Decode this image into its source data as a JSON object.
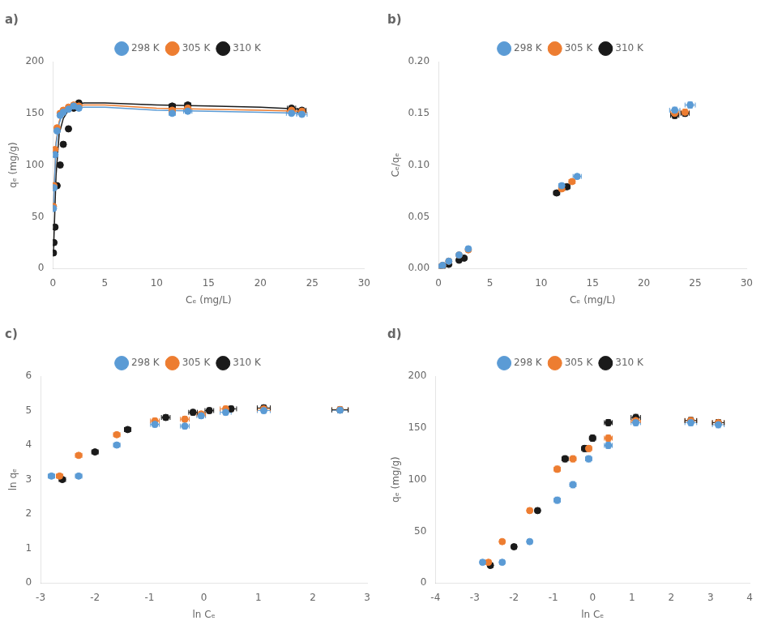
{
  "chart_data": [
    {
      "type": "scatter",
      "title": "a)",
      "x_label": "Cₑ (mg/L)",
      "y_label": "qₑ (mg/g)",
      "xlim": [
        0,
        30
      ],
      "ylim": [
        0,
        200
      ],
      "xticks": [
        0,
        5,
        10,
        15,
        20,
        25,
        30
      ],
      "yticks": [
        0,
        50,
        100,
        150,
        200
      ],
      "grid": false,
      "legend": "top",
      "marker": "circle",
      "series": [
        {
          "name": "298 K",
          "color": "#5B9BD5",
          "x": [
            0.05,
            0.1,
            0.2,
            0.4,
            0.7,
            1.0,
            1.5,
            2.0,
            2.5,
            11.5,
            13.0,
            23.0,
            24.0
          ],
          "values": [
            58,
            78,
            110,
            133,
            148,
            151,
            154,
            157,
            155,
            150,
            152,
            150,
            149
          ],
          "xerr": [
            0.0,
            0.0,
            0.0,
            0.0,
            0.0,
            0.0,
            0.0,
            0.0,
            0.0,
            0.3,
            0.4,
            0.5,
            0.5
          ],
          "yerr": [
            2,
            2,
            2,
            2,
            2,
            2,
            2,
            2,
            2,
            2,
            2,
            2,
            2
          ],
          "curve": {
            "x": [
              0.05,
              0.3,
              0.6,
              1.0,
              1.5,
              2.0,
              3.0,
              5.0,
              10.0,
              15.0,
              20.0,
              24.0
            ],
            "values": [
              58,
              120,
              140,
              151,
              154,
              155,
              156,
              156,
              153,
              152,
              151,
              150
            ]
          }
        },
        {
          "name": "305 K",
          "color": "#ED7D31",
          "x": [
            0.05,
            0.1,
            0.2,
            0.4,
            0.7,
            1.0,
            1.5,
            2.0,
            2.5,
            11.5,
            13.0,
            23.0,
            24.0
          ],
          "values": [
            60,
            80,
            115,
            136,
            150,
            153,
            156,
            158,
            157,
            153,
            155,
            153,
            152
          ],
          "xerr": [
            0.0,
            0.0,
            0.0,
            0.0,
            0.0,
            0.0,
            0.0,
            0.0,
            0.0,
            0.3,
            0.3,
            0.4,
            0.4
          ],
          "yerr": [
            2,
            2,
            2,
            2,
            2,
            2,
            2,
            2,
            2,
            2,
            2,
            2,
            2
          ],
          "curve": {
            "x": [
              0.05,
              0.3,
              0.6,
              1.0,
              1.5,
              2.0,
              3.0,
              5.0,
              10.0,
              15.0,
              20.0,
              24.0
            ],
            "values": [
              60,
              122,
              142,
              153,
              156,
              157,
              158,
              158,
              155,
              154,
              153,
              152
            ]
          }
        },
        {
          "name": "310 K",
          "color": "#1A1A1A",
          "x": [
            0.05,
            0.1,
            0.2,
            0.4,
            0.7,
            1.0,
            1.5,
            2.0,
            2.5,
            11.5,
            13.0,
            23.0,
            24.0
          ],
          "values": [
            15,
            25,
            40,
            80,
            100,
            120,
            135,
            155,
            160,
            157,
            158,
            155,
            153
          ],
          "xerr": [
            0.0,
            0.0,
            0.0,
            0.0,
            0.0,
            0.0,
            0.0,
            0.0,
            0.0,
            0.3,
            0.3,
            0.4,
            0.4
          ],
          "yerr": [
            2,
            2,
            2,
            2,
            2,
            2,
            2,
            2,
            2,
            2,
            2,
            2,
            2
          ],
          "curve": {
            "x": [
              0.05,
              0.3,
              0.6,
              1.0,
              1.5,
              2.0,
              3.0,
              5.0,
              10.0,
              15.0,
              20.0,
              24.0
            ],
            "values": [
              15,
              90,
              130,
              145,
              153,
              158,
              160,
              160,
              158,
              157,
              156,
              154
            ]
          }
        }
      ]
    },
    {
      "type": "scatter",
      "title": "b)",
      "x_label": "Cₑ (mg/L)",
      "y_label": "Cₑ/qₑ",
      "xlim": [
        0,
        30
      ],
      "ylim": [
        0,
        0.2
      ],
      "xticks": [
        0,
        5,
        10,
        15,
        20,
        25,
        30
      ],
      "yticks": [
        {
          "value": 0,
          "label": "0.00"
        },
        {
          "value": 0.05,
          "label": "0.05"
        },
        {
          "value": 0.1,
          "label": "0.10"
        },
        {
          "value": 0.15,
          "label": "0.15"
        },
        {
          "value": 0.2,
          "label": "0.20"
        }
      ],
      "grid": false,
      "legend": "top",
      "marker": "circle",
      "series": [
        {
          "name": "298 K",
          "color": "#5B9BD5",
          "x": [
            0.1,
            0.4,
            1.0,
            2.0,
            2.9,
            12.0,
            13.5,
            23.0,
            24.5
          ],
          "values": [
            0.001,
            0.003,
            0.007,
            0.013,
            0.019,
            0.08,
            0.089,
            0.153,
            0.158
          ],
          "xerr": [
            0.0,
            0.0,
            0.0,
            0.0,
            0.0,
            0.3,
            0.4,
            0.5,
            0.5
          ],
          "yerr": [
            0.0,
            0.0,
            0.0,
            0.0,
            0.0,
            0.002,
            0.002,
            0.003,
            0.003
          ]
        },
        {
          "name": "305 K",
          "color": "#ED7D31",
          "x": [
            0.1,
            0.4,
            1.0,
            2.0,
            2.9,
            12.0,
            13.0,
            23.0,
            24.0
          ],
          "values": [
            0.001,
            0.003,
            0.007,
            0.013,
            0.018,
            0.077,
            0.084,
            0.15,
            0.151
          ],
          "xerr": [
            0.0,
            0.0,
            0.0,
            0.0,
            0.0,
            0.3,
            0.3,
            0.4,
            0.4
          ],
          "yerr": [
            0.0,
            0.0,
            0.0,
            0.0,
            0.0,
            0.002,
            0.002,
            0.003,
            0.003
          ]
        },
        {
          "name": "310 K",
          "color": "#1A1A1A",
          "x": [
            0.1,
            0.4,
            1.0,
            2.0,
            2.5,
            11.5,
            12.5,
            23.0,
            24.0
          ],
          "values": [
            0.001,
            0.002,
            0.004,
            0.008,
            0.01,
            0.073,
            0.079,
            0.148,
            0.15
          ],
          "xerr": [
            0.0,
            0.0,
            0.0,
            0.0,
            0.0,
            0.3,
            0.3,
            0.4,
            0.4
          ],
          "yerr": [
            0.0,
            0.0,
            0.0,
            0.0,
            0.0,
            0.002,
            0.002,
            0.003,
            0.003
          ]
        }
      ]
    },
    {
      "type": "scatter",
      "title": "c)",
      "x_label": "ln Cₑ",
      "y_label": "ln qₑ",
      "xlim": [
        -3,
        3
      ],
      "ylim": [
        0,
        6
      ],
      "xticks": [
        -3,
        -2,
        -1,
        0,
        1,
        2,
        3
      ],
      "yticks": [
        0,
        1,
        2,
        3,
        4,
        5,
        6
      ],
      "grid": false,
      "legend": "top",
      "marker": "circle",
      "series": [
        {
          "name": "298 K",
          "color": "#5B9BD5",
          "x": [
            -2.8,
            -2.3,
            -1.6,
            -0.9,
            -0.35,
            -0.05,
            0.4,
            1.1,
            2.5
          ],
          "values": [
            3.1,
            3.1,
            4.0,
            4.6,
            4.55,
            4.85,
            4.95,
            5.0,
            5.01
          ],
          "xerr": [
            0.06,
            0.06,
            0.06,
            0.08,
            0.08,
            0.08,
            0.1,
            0.12,
            0.15
          ],
          "yerr": [
            0.06,
            0.06,
            0.06,
            0.08,
            0.08,
            0.08,
            0.08,
            0.08,
            0.08
          ]
        },
        {
          "name": "305 K",
          "color": "#ED7D31",
          "x": [
            -2.65,
            -2.3,
            -1.6,
            -0.9,
            -0.35,
            -0.05,
            0.4,
            1.1,
            2.5
          ],
          "values": [
            3.1,
            3.7,
            4.3,
            4.7,
            4.75,
            4.9,
            5.05,
            5.05,
            5.03
          ],
          "xerr": [
            0.06,
            0.06,
            0.06,
            0.08,
            0.08,
            0.08,
            0.1,
            0.12,
            0.15
          ],
          "yerr": [
            0.06,
            0.06,
            0.06,
            0.08,
            0.08,
            0.08,
            0.08,
            0.08,
            0.08
          ]
        },
        {
          "name": "310 K",
          "color": "#1A1A1A",
          "x": [
            -2.6,
            -2.0,
            -1.4,
            -0.7,
            -0.2,
            0.1,
            0.5,
            1.1,
            2.5
          ],
          "values": [
            3.0,
            3.8,
            4.45,
            4.8,
            4.95,
            5.0,
            5.05,
            5.08,
            5.02
          ],
          "xerr": [
            0.06,
            0.06,
            0.06,
            0.08,
            0.08,
            0.08,
            0.1,
            0.12,
            0.15
          ],
          "yerr": [
            0.06,
            0.06,
            0.06,
            0.08,
            0.08,
            0.08,
            0.08,
            0.08,
            0.08
          ]
        }
      ]
    },
    {
      "type": "scatter",
      "title": "d)",
      "x_label": "ln Cₑ",
      "y_label": "qₑ (mg/g)",
      "xlim": [
        -4,
        4
      ],
      "ylim": [
        0,
        200
      ],
      "xticks": [
        -4,
        -3,
        -2,
        -1,
        0,
        1,
        2,
        3,
        4
      ],
      "yticks": [
        0,
        50,
        100,
        150,
        200
      ],
      "grid": false,
      "legend": "top",
      "marker": "circle",
      "series": [
        {
          "name": "298 K",
          "color": "#5B9BD5",
          "x": [
            -2.8,
            -2.3,
            -1.6,
            -0.9,
            -0.5,
            -0.1,
            0.4,
            1.1,
            2.5,
            3.2
          ],
          "values": [
            20,
            20,
            40,
            80,
            95,
            120,
            133,
            155,
            155,
            153
          ],
          "xerr": [
            0.06,
            0.06,
            0.06,
            0.08,
            0.08,
            0.08,
            0.1,
            0.12,
            0.15,
            0.15
          ],
          "yerr": [
            2,
            2,
            2,
            3,
            3,
            3,
            3,
            3,
            3,
            3
          ]
        },
        {
          "name": "305 K",
          "color": "#ED7D31",
          "x": [
            -2.65,
            -2.3,
            -1.6,
            -0.9,
            -0.5,
            -0.1,
            0.4,
            1.1,
            2.5,
            3.2
          ],
          "values": [
            20,
            40,
            70,
            110,
            120,
            130,
            140,
            157,
            157,
            155
          ],
          "xerr": [
            0.06,
            0.06,
            0.06,
            0.08,
            0.08,
            0.08,
            0.1,
            0.12,
            0.15,
            0.15
          ],
          "yerr": [
            2,
            2,
            2,
            3,
            3,
            3,
            3,
            3,
            3,
            3
          ]
        },
        {
          "name": "310 K",
          "color": "#1A1A1A",
          "x": [
            -2.6,
            -2.0,
            -1.4,
            -0.7,
            -0.2,
            0.0,
            0.4,
            1.1,
            2.5,
            3.2
          ],
          "values": [
            17,
            35,
            70,
            120,
            130,
            140,
            155,
            160,
            157,
            155
          ],
          "xerr": [
            0.06,
            0.06,
            0.06,
            0.08,
            0.08,
            0.08,
            0.1,
            0.12,
            0.15,
            0.15
          ],
          "yerr": [
            2,
            2,
            2,
            3,
            3,
            3,
            3,
            3,
            3,
            3
          ]
        }
      ]
    }
  ]
}
